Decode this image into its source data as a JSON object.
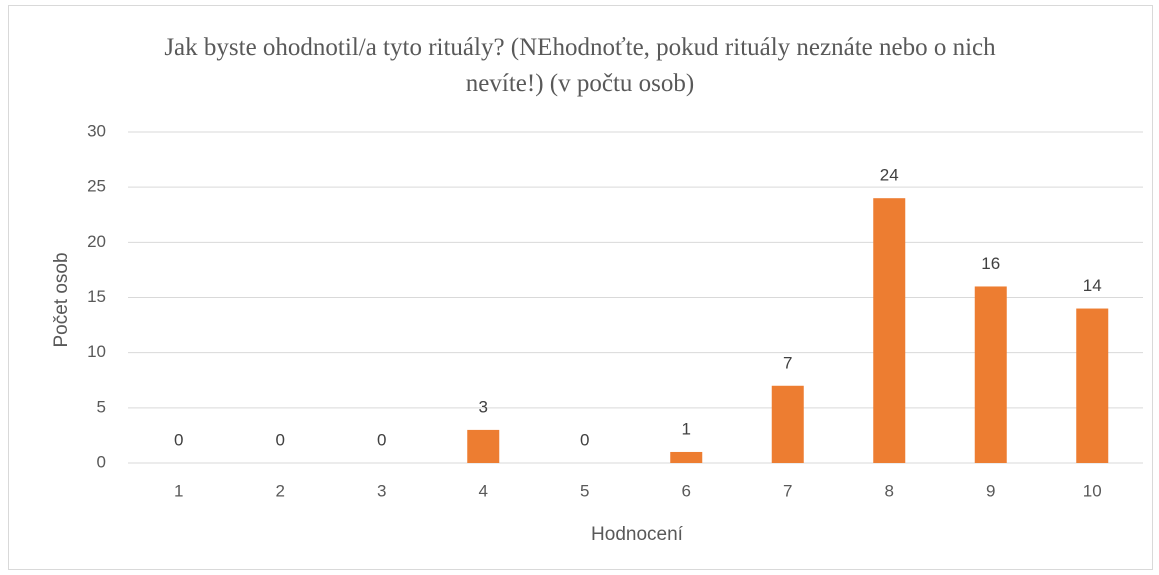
{
  "chart_data": {
    "type": "bar",
    "title": "Jak byste ohodnotil/a tyto rituály? (NEhodnoťte, pokud rituály neznáte nebo o nich nevíte!) (v počtu osob)",
    "x_label": "Hodnocení",
    "y_label": "Počet osob",
    "categories": [
      "1",
      "2",
      "3",
      "4",
      "5",
      "6",
      "7",
      "8",
      "9",
      "10"
    ],
    "values": [
      0,
      0,
      0,
      3,
      0,
      1,
      7,
      24,
      16,
      14
    ],
    "color": "#ed7d31",
    "ylim": [
      0,
      30
    ],
    "yticks": [
      0,
      5,
      10,
      15,
      20,
      25,
      30
    ],
    "grid": true,
    "data_labels": true
  }
}
